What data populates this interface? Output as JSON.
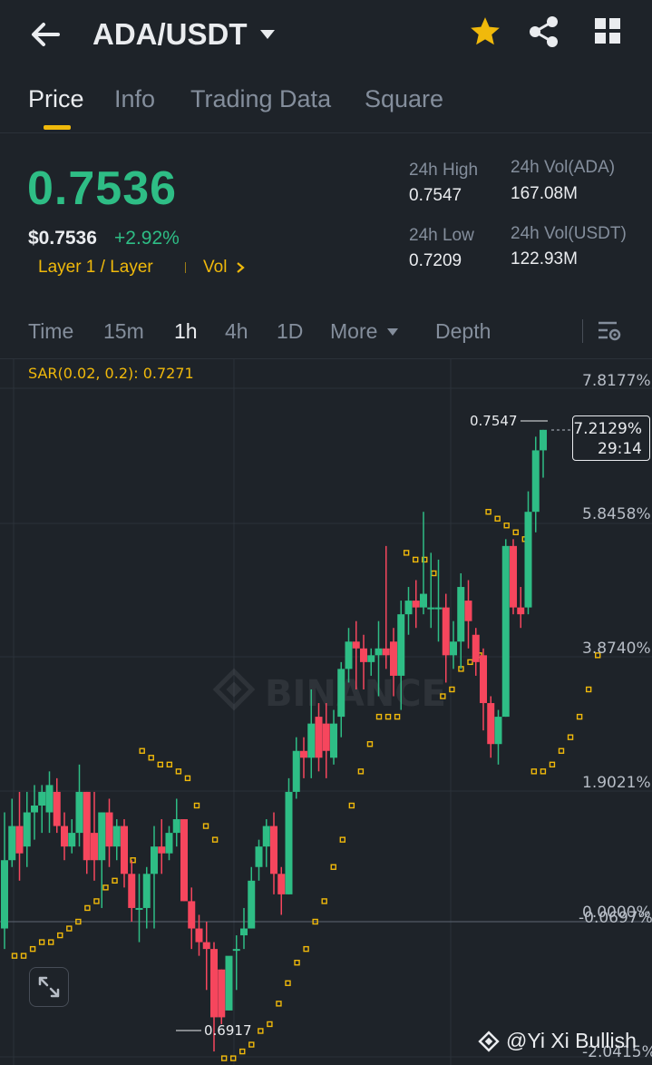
{
  "header": {
    "pair": "ADA/USDT",
    "icons": [
      "back-arrow-icon",
      "caret-down-icon",
      "star-icon",
      "share-icon",
      "grid-icon"
    ],
    "favorite_color": "#f0b90b"
  },
  "tabs": [
    "Price",
    "Info",
    "Trading Data",
    "Square"
  ],
  "price": {
    "last": "0.7536",
    "usd": "$0.7536",
    "change": "+2.92%",
    "tag": "Layer 1 / Layer",
    "vol_link": "Vol",
    "up_color": "#2ebd85",
    "down_color": "#f6465d"
  },
  "stats": {
    "high_label": "24h High",
    "high": "0.7547",
    "low_label": "24h Low",
    "low": "0.7209",
    "vol_ada_label": "24h Vol(ADA)",
    "vol_ada": "167.08M",
    "vol_usdt_label": "24h Vol(USDT)",
    "vol_usdt": "122.93M"
  },
  "intervals": [
    "Time",
    "15m",
    "1h",
    "4h",
    "1D",
    "More",
    "Depth"
  ],
  "active_interval": "1h",
  "chart": {
    "indicator": "SAR(0.02, 0.2): 0.7271",
    "axis_labels": [
      "7.8177%",
      "5.8458%",
      "3.8740%",
      "1.9021%",
      "0.0000%",
      "-0.0697%",
      "-2.0415%"
    ],
    "current_pct": "7.2129%",
    "countdown": "29:14",
    "high_marker": "0.7547",
    "low_marker": "0.6917",
    "watermark": "BINANCE",
    "credit": "@Yi Xi Bullish"
  },
  "chart_data": {
    "type": "candlestick",
    "interval": "1h",
    "indicator": "SAR(0.02, 0.2)",
    "y_axis": "percent change",
    "ylim_pct": [
      -2.0415,
      7.8177
    ],
    "marked_high": 0.7547,
    "marked_low": 0.6917,
    "candles_pct": [
      [
        0.9,
        -0.1,
        1.6,
        -0.4
      ],
      [
        1.4,
        0.9,
        1.8,
        0.8
      ],
      [
        1.0,
        1.4,
        1.9,
        0.6
      ],
      [
        1.6,
        1.1,
        1.9,
        0.8
      ],
      [
        1.7,
        1.6,
        2.0,
        1.2
      ],
      [
        1.9,
        1.7,
        2.0,
        1.3
      ],
      [
        2.0,
        1.6,
        2.2,
        1.3
      ],
      [
        1.4,
        1.9,
        2.1,
        1.3
      ],
      [
        1.1,
        1.4,
        1.6,
        0.9
      ],
      [
        1.3,
        1.1,
        1.5,
        1.0
      ],
      [
        1.9,
        1.3,
        2.3,
        1.1
      ],
      [
        0.9,
        1.9,
        1.9,
        0.7
      ],
      [
        0.9,
        1.3,
        1.9,
        0.6
      ],
      [
        1.6,
        0.9,
        1.6,
        0.2
      ],
      [
        1.1,
        1.6,
        1.8,
        0.8
      ],
      [
        1.4,
        1.1,
        1.5,
        0.9
      ],
      [
        0.7,
        1.4,
        1.5,
        0.5
      ],
      [
        0.2,
        0.7,
        0.9,
        0.0
      ],
      [
        0.2,
        0.2,
        0.7,
        -0.3
      ],
      [
        0.7,
        0.2,
        0.8,
        -0.1
      ],
      [
        1.1,
        0.7,
        1.4,
        -0.1
      ],
      [
        1.0,
        1.1,
        1.5,
        0.7
      ],
      [
        1.3,
        1.0,
        1.4,
        0.9
      ],
      [
        1.5,
        1.3,
        1.8,
        1.1
      ],
      [
        0.3,
        1.5,
        1.5,
        0.3
      ],
      [
        -0.1,
        0.3,
        0.5,
        -0.4
      ],
      [
        -0.3,
        -0.1,
        0.1,
        -0.5
      ],
      [
        -0.4,
        -0.3,
        0.0,
        -1.0
      ],
      [
        -1.4,
        -0.4,
        -0.3,
        -1.9
      ],
      [
        -1.4,
        -0.7,
        -0.7,
        -1.5
      ],
      [
        -0.5,
        -1.3,
        -0.9,
        -1.3
      ],
      [
        -0.4,
        -0.4,
        -0.2,
        -1.0
      ],
      [
        -0.1,
        -0.2,
        0.2,
        -0.4
      ],
      [
        0.6,
        -0.1,
        0.8,
        -0.1
      ],
      [
        1.1,
        0.8,
        1.2,
        0.6
      ],
      [
        1.4,
        1.1,
        1.5,
        0.8
      ],
      [
        0.7,
        1.4,
        1.6,
        0.4
      ],
      [
        0.4,
        0.7,
        0.8,
        0.1
      ],
      [
        1.9,
        0.4,
        2.1,
        0.4
      ],
      [
        2.5,
        1.9,
        2.7,
        1.8
      ],
      [
        2.4,
        2.5,
        2.7,
        2.1
      ],
      [
        2.9,
        2.4,
        3.4,
        2.1
      ],
      [
        2.4,
        3.0,
        3.2,
        2.2
      ],
      [
        2.5,
        2.9,
        3.2,
        2.1
      ],
      [
        2.9,
        2.4,
        3.1,
        2.3
      ],
      [
        3.7,
        3.0,
        3.8,
        2.7
      ],
      [
        4.1,
        3.7,
        4.3,
        3.5
      ],
      [
        4.0,
        4.1,
        4.4,
        3.4
      ],
      [
        3.8,
        4.0,
        4.2,
        3.4
      ],
      [
        3.9,
        3.8,
        4.0,
        3.6
      ],
      [
        4.0,
        3.9,
        4.4,
        3.3
      ],
      [
        3.9,
        4.0,
        5.5,
        3.7
      ],
      [
        3.6,
        4.1,
        4.3,
        3.3
      ],
      [
        4.5,
        3.6,
        4.7,
        3.1
      ],
      [
        4.7,
        4.5,
        4.9,
        4.2
      ],
      [
        4.6,
        4.7,
        5.0,
        4.3
      ],
      [
        4.8,
        4.6,
        6.0,
        4.5
      ],
      [
        4.6,
        4.6,
        5.4,
        4.3
      ],
      [
        4.6,
        4.6,
        5.3,
        4.1
      ],
      [
        3.9,
        4.6,
        4.8,
        3.5
      ],
      [
        4.1,
        3.9,
        4.4,
        3.7
      ],
      [
        4.9,
        4.1,
        5.1,
        3.7
      ],
      [
        4.4,
        4.7,
        5.0,
        4.0
      ],
      [
        3.8,
        4.2,
        4.3,
        3.6
      ],
      [
        3.2,
        3.9,
        4.0,
        2.8
      ],
      [
        2.6,
        3.2,
        3.3,
        2.4
      ],
      [
        3.0,
        2.6,
        3.1,
        2.3
      ],
      [
        5.5,
        3.0,
        5.6,
        3.0
      ],
      [
        4.6,
        5.5,
        5.6,
        4.5
      ],
      [
        4.5,
        4.6,
        4.9,
        4.3
      ],
      [
        6.0,
        4.6,
        6.3,
        4.5
      ],
      [
        6.9,
        6.0,
        7.1,
        5.7
      ],
      [
        7.2,
        6.9,
        7.2,
        6.5
      ]
    ],
    "sar_pct": [
      -0.5,
      -0.5,
      -0.4,
      -0.3,
      -0.3,
      -0.2,
      -0.1,
      0.0,
      0.2,
      0.3,
      0.5,
      0.6,
      0.8,
      0.9,
      2.5,
      2.4,
      2.3,
      2.3,
      2.2,
      2.1,
      1.7,
      1.4,
      1.2,
      -2.0,
      -2.0,
      -1.9,
      -1.8,
      -1.6,
      -1.5,
      -1.2,
      -0.9,
      -0.6,
      -0.4,
      0.0,
      0.3,
      0.8,
      1.2,
      1.7,
      2.2,
      2.6,
      3.0,
      3.0,
      3.0,
      5.4,
      5.3,
      5.3,
      5.1,
      3.3,
      3.4,
      3.7,
      3.8,
      3.9,
      6.0,
      5.9,
      5.8,
      5.7,
      5.6,
      2.2,
      2.2,
      2.3,
      2.5,
      2.7,
      3.0,
      3.4,
      3.9
    ]
  }
}
